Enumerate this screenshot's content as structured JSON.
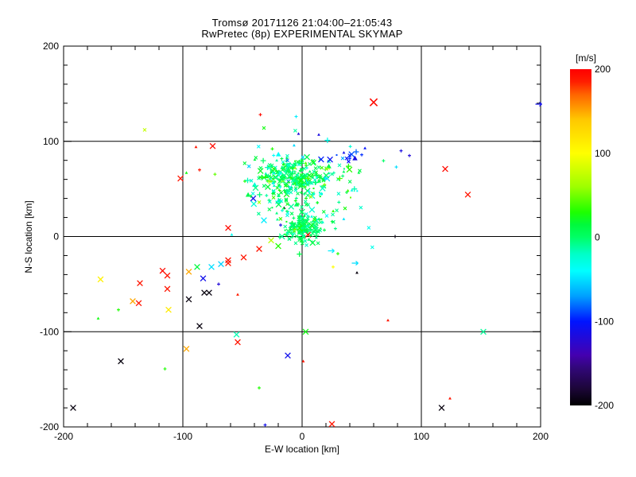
{
  "styles": {
    "background": "#ffffff",
    "frame_color": "#000000",
    "text_color": "#000000"
  },
  "chart_data": {
    "type": "scatter",
    "title": "Tromsø 20171126 21:04:00–21:05:43",
    "subtitle": "RwPretec (8p) EXPERIMENTAL SKYMAP",
    "xlabel": "E-W location [km]",
    "ylabel": "N-S location [km]",
    "xlim": [
      -200,
      200
    ],
    "ylim": [
      -200,
      200
    ],
    "xticks": [
      -200,
      -100,
      0,
      100,
      200
    ],
    "yticks": [
      -200,
      -100,
      0,
      100,
      200
    ],
    "minor_tick_step": 20,
    "grid_values_x": [
      -100,
      0,
      100
    ],
    "grid_values_y": [
      -100,
      0,
      100
    ],
    "grid_on": true,
    "legend_position": "none",
    "colorbar": {
      "label": "[m/s]",
      "ticks": [
        200,
        100,
        0,
        -100,
        -200
      ],
      "min": -200,
      "max": 200,
      "stops": [
        [
          -200,
          "#000000"
        ],
        [
          -180,
          "#1c0638"
        ],
        [
          -155,
          "#32077a"
        ],
        [
          -140,
          "#4400b0"
        ],
        [
          -100,
          "#0014ff"
        ],
        [
          -70,
          "#00a0ff"
        ],
        [
          -40,
          "#00ffff"
        ],
        [
          -20,
          "#00ffc8"
        ],
        [
          0,
          "#00ff66"
        ],
        [
          15,
          "#00fa3c"
        ],
        [
          30,
          "#1eff00"
        ],
        [
          60,
          "#9dff00"
        ],
        [
          100,
          "#ffff00"
        ],
        [
          140,
          "#ffc800"
        ],
        [
          170,
          "#ff6400"
        ],
        [
          185,
          "#ff1e00"
        ],
        [
          200,
          "#ff0000"
        ]
      ]
    },
    "points_format": [
      "ew_km",
      "ns_km",
      "velocity_mps",
      "size_class",
      "marker"
    ],
    "points": [
      [
        60,
        141,
        195,
        3,
        "x"
      ],
      [
        -5,
        126,
        -45,
        1,
        "+"
      ],
      [
        -35,
        128,
        195,
        1,
        "+"
      ],
      [
        -32,
        114,
        25,
        1,
        "x"
      ],
      [
        -3,
        108,
        -120,
        1,
        "t"
      ],
      [
        14,
        107,
        -115,
        1,
        "t"
      ],
      [
        -132,
        112,
        75,
        1,
        "x"
      ],
      [
        -75,
        95,
        195,
        2,
        "x"
      ],
      [
        -89,
        94,
        190,
        1,
        "t"
      ],
      [
        -86,
        70,
        190,
        1,
        "+"
      ],
      [
        -102,
        61,
        190,
        2,
        "x"
      ],
      [
        -97,
        67,
        25,
        1,
        "t"
      ],
      [
        -25,
        92,
        30,
        1,
        "+"
      ],
      [
        199,
        139,
        -110,
        2,
        "a"
      ],
      [
        120,
        71,
        195,
        2,
        "x"
      ],
      [
        139,
        44,
        190,
        2,
        "x"
      ],
      [
        83,
        90,
        -115,
        1,
        "+"
      ],
      [
        90,
        85,
        -120,
        1,
        "+"
      ],
      [
        79,
        73,
        -50,
        1,
        "+"
      ],
      [
        22,
        72,
        80,
        1,
        "x"
      ],
      [
        21,
        61,
        -50,
        2,
        "x"
      ],
      [
        152,
        -100,
        -10,
        2,
        "x"
      ],
      [
        124,
        -170,
        190,
        1,
        "t"
      ],
      [
        117,
        -180,
        -195,
        2,
        "x"
      ],
      [
        -62,
        9,
        195,
        2,
        "x"
      ],
      [
        -41,
        40,
        -110,
        2,
        "x"
      ],
      [
        -36,
        36,
        60,
        1,
        "x"
      ],
      [
        -32,
        17,
        -45,
        2,
        "x"
      ],
      [
        -12,
        25,
        -40,
        1,
        "x"
      ],
      [
        -15,
        30,
        -195,
        1,
        "t"
      ],
      [
        -9,
        11,
        -115,
        1,
        "+"
      ],
      [
        -26,
        -4,
        70,
        2,
        "x"
      ],
      [
        -20,
        -10,
        30,
        2,
        "x"
      ],
      [
        -36,
        -13,
        190,
        2,
        "x"
      ],
      [
        -49,
        -22,
        190,
        2,
        "x"
      ],
      [
        -62,
        -25,
        190,
        2,
        "x"
      ],
      [
        -59,
        2,
        -35,
        1,
        "t"
      ],
      [
        -169,
        -45,
        110,
        2,
        "x"
      ],
      [
        -136,
        -49,
        190,
        2,
        "x"
      ],
      [
        -117,
        -36,
        195,
        2,
        "x"
      ],
      [
        -113,
        -41,
        190,
        2,
        "x"
      ],
      [
        -113,
        -55,
        190,
        2,
        "x"
      ],
      [
        -142,
        -68,
        150,
        2,
        "x"
      ],
      [
        -137,
        -70,
        190,
        2,
        "x"
      ],
      [
        -112,
        -77,
        115,
        2,
        "x"
      ],
      [
        -154,
        -77,
        30,
        1,
        "+"
      ],
      [
        -171,
        -86,
        25,
        1,
        "t"
      ],
      [
        -95,
        -37,
        150,
        2,
        "x"
      ],
      [
        -88,
        -32,
        15,
        2,
        "x"
      ],
      [
        -76,
        -32,
        -50,
        2,
        "x"
      ],
      [
        -68,
        -29,
        -55,
        2,
        "x"
      ],
      [
        -62,
        -28,
        190,
        2,
        "x"
      ],
      [
        -83,
        -44,
        -110,
        2,
        "x"
      ],
      [
        -70,
        -50,
        -120,
        1,
        "+"
      ],
      [
        -82,
        -59,
        -195,
        2,
        "x"
      ],
      [
        -78,
        -59,
        -195,
        2,
        "x"
      ],
      [
        -95,
        -66,
        -195,
        2,
        "x"
      ],
      [
        -86,
        -94,
        -195,
        2,
        "x"
      ],
      [
        -54,
        -61,
        185,
        1,
        "t"
      ],
      [
        -55,
        -103,
        -15,
        2,
        "x"
      ],
      [
        -54,
        -111,
        190,
        2,
        "x"
      ],
      [
        -97,
        -118,
        150,
        2,
        "x"
      ],
      [
        -152,
        -131,
        -195,
        2,
        "x"
      ],
      [
        -115,
        -139,
        30,
        1,
        "+"
      ],
      [
        -192,
        -180,
        -195,
        2,
        "x"
      ],
      [
        -12,
        -125,
        -110,
        2,
        "x"
      ],
      [
        -36,
        -159,
        30,
        1,
        "+"
      ],
      [
        -31,
        -198,
        -110,
        1,
        "+"
      ],
      [
        3,
        -100,
        25,
        2,
        "x"
      ],
      [
        1,
        -131,
        190,
        1,
        "t"
      ],
      [
        72,
        -88,
        190,
        1,
        "t"
      ],
      [
        25,
        -197,
        190,
        2,
        "x"
      ],
      [
        5,
        2,
        195,
        2,
        "x"
      ],
      [
        -18,
        12,
        -115,
        1,
        "+"
      ],
      [
        25,
        -15,
        -45,
        1,
        "a"
      ],
      [
        45,
        -28,
        -50,
        1,
        "a"
      ],
      [
        26,
        -32,
        100,
        1,
        "+"
      ],
      [
        30,
        -18,
        30,
        1,
        "+"
      ],
      [
        78,
        0,
        -195,
        1,
        "+"
      ],
      [
        46,
        -38,
        -195,
        1,
        "t"
      ]
    ],
    "clusters_note": "dense overplotted echo clusters, represented by distribution parameters",
    "clusters": [
      {
        "name": "main-cluster-core",
        "n": 230,
        "cx": -8,
        "cy": 64,
        "sx": 13,
        "sy": 9,
        "v_mean": 5,
        "v_sd": 18,
        "seed": 101
      },
      {
        "name": "main-cluster-halo",
        "n": 90,
        "cx": -2,
        "cy": 60,
        "sx": 26,
        "sy": 17,
        "v_mean": -8,
        "v_sd": 34,
        "seed": 202
      },
      {
        "name": "blue-patch-ne",
        "n": 14,
        "cx": 38,
        "cy": 86,
        "sx": 8,
        "sy": 5,
        "v_mean": -95,
        "v_sd": 12,
        "seed": 303
      },
      {
        "name": "origin-cluster-core",
        "n": 130,
        "cx": 1,
        "cy": 8,
        "sx": 7,
        "sy": 7,
        "v_mean": 2,
        "v_sd": 10,
        "seed": 404
      },
      {
        "name": "origin-cluster-halo",
        "n": 40,
        "cx": 3,
        "cy": 13,
        "sx": 13,
        "sy": 11,
        "v_mean": -4,
        "v_sd": 22,
        "seed": 505
      },
      {
        "name": "inter-cluster-trail",
        "n": 35,
        "cx": -12,
        "cy": 34,
        "sx": 14,
        "sy": 12,
        "v_mean": 0,
        "v_sd": 25,
        "seed": 606
      },
      {
        "name": "right-spray",
        "n": 25,
        "cx": 24,
        "cy": 40,
        "sx": 16,
        "sy": 28,
        "v_mean": 0,
        "v_sd": 28,
        "seed": 707
      }
    ]
  }
}
